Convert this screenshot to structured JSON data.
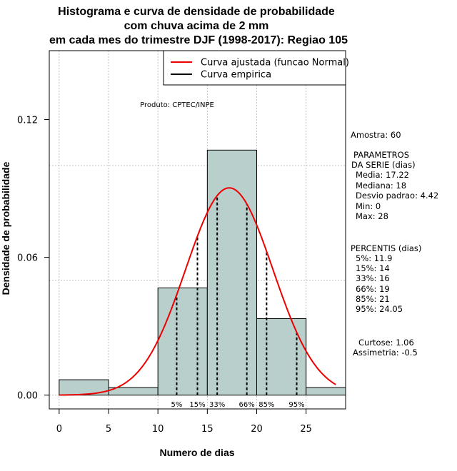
{
  "chart_data": {
    "type": "bar",
    "title_lines": [
      "Histograma e curva de densidade de probabilidade",
      "com chuva acima de 2 mm",
      "em cada mes do trimestre DJF (1998-2017): Regiao 105"
    ],
    "xlabel": "Numero de dias",
    "ylabel": "Densidade de probabilidade",
    "xlim": [
      -1,
      29
    ],
    "ylim": [
      -0.006,
      0.15
    ],
    "x_ticks": [
      0,
      5,
      10,
      15,
      20,
      25
    ],
    "y_ticks": [
      0.0,
      0.06,
      0.12
    ],
    "y_tick_labels": [
      "0.00",
      "0.06",
      "0.12"
    ],
    "grid": true,
    "histogram": {
      "bin_edges": [
        0,
        5,
        10,
        15,
        20,
        25,
        30
      ],
      "densities": [
        0.0067,
        0.0033,
        0.0467,
        0.1067,
        0.0333,
        0.0033
      ]
    },
    "normal_fit": {
      "mean": 17.22,
      "sd": 4.42,
      "x_range": [
        0,
        28
      ],
      "color": "#ee0000"
    },
    "percentile_lines": [
      {
        "label": "5%",
        "x": 11.9
      },
      {
        "label": "15%",
        "x": 14
      },
      {
        "label": "33%",
        "x": 16
      },
      {
        "label": "66%",
        "x": 19
      },
      {
        "label": "85%",
        "x": 21
      },
      {
        "label": "95%",
        "x": 24.05
      }
    ],
    "legend": {
      "position": "top-right",
      "entries": [
        {
          "label": "Curva ajustada (funcao Normal)",
          "color": "#ee0000"
        },
        {
          "label": "Curva empirica",
          "color": "#000000"
        }
      ]
    },
    "annotation": "Produto: CPTEC/INPE",
    "bar_color": "#b9cfcc"
  },
  "stats_panel": {
    "amostra": "Amostra: 60",
    "params_header_1": "PARAMETROS",
    "params_header_2": "DA SERIE (dias)",
    "media": "Media: 17.22",
    "mediana": "Mediana: 18",
    "desvio": "Desvio padrao: 4.42",
    "min": "Min: 0",
    "max": "Max: 28",
    "percentis_header": "PERCENTIS (dias)",
    "p5": "5%: 11.9",
    "p15": "15%: 14",
    "p33": "33%: 16",
    "p66": "66%: 19",
    "p85": "85%: 21",
    "p95": "95%: 24.05",
    "curtose": "Curtose: 1.06",
    "assimetria": "Assimetria: -0.5"
  }
}
